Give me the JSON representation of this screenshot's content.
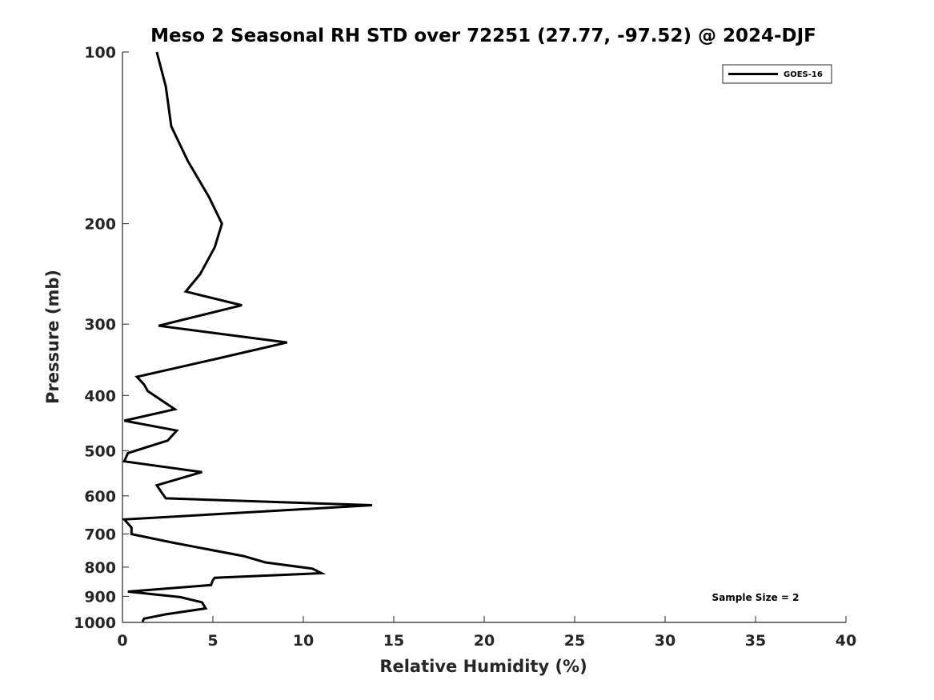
{
  "chart_data": {
    "type": "line",
    "title": "Meso 2 Seasonal RH STD over 72251 (27.77, -97.52) @ 2024-DJF",
    "xlabel": "Relative Humidity (%)",
    "ylabel": "Pressure (mb)",
    "xlim": [
      0,
      40
    ],
    "ylim": [
      100,
      1000
    ],
    "yscale": "log-reversed",
    "x_ticks": [
      0,
      5,
      10,
      15,
      20,
      25,
      30,
      35,
      40
    ],
    "y_ticks": [
      100,
      200,
      300,
      400,
      500,
      600,
      700,
      800,
      900,
      1000
    ],
    "legend_position": "top-right",
    "annotation": "Sample Size = 2",
    "series": [
      {
        "name": "GOES-16",
        "color": "#000000",
        "points": [
          [
            1.9,
            100
          ],
          [
            2.4,
            115
          ],
          [
            2.7,
            135
          ],
          [
            3.6,
            155
          ],
          [
            4.8,
            180
          ],
          [
            5.5,
            200
          ],
          [
            5.1,
            220
          ],
          [
            4.3,
            245
          ],
          [
            3.5,
            263
          ],
          [
            6.6,
            278
          ],
          [
            2.0,
            302
          ],
          [
            9.1,
            323
          ],
          [
            5.2,
            345
          ],
          [
            0.8,
            371
          ],
          [
            1.2,
            383
          ],
          [
            1.4,
            393
          ],
          [
            2.9,
            423
          ],
          [
            0.1,
            443
          ],
          [
            3.0,
            461
          ],
          [
            2.5,
            480
          ],
          [
            0.3,
            505
          ],
          [
            0.1,
            522
          ],
          [
            4.4,
            545
          ],
          [
            1.9,
            575
          ],
          [
            2.2,
            594
          ],
          [
            2.4,
            606
          ],
          [
            13.8,
            623
          ],
          [
            0.1,
            660
          ],
          [
            0.5,
            682
          ],
          [
            0.5,
            700
          ],
          [
            2.8,
            725
          ],
          [
            6.7,
            765
          ],
          [
            7.9,
            785
          ],
          [
            10.5,
            805
          ],
          [
            11.0,
            820
          ],
          [
            5.1,
            835
          ],
          [
            5.0,
            843
          ],
          [
            4.9,
            860
          ],
          [
            0.3,
            883
          ],
          [
            3.2,
            903
          ],
          [
            4.4,
            922
          ],
          [
            4.6,
            945
          ],
          [
            2.4,
            968
          ],
          [
            1.2,
            985
          ],
          [
            1.1,
            997
          ]
        ]
      }
    ]
  }
}
